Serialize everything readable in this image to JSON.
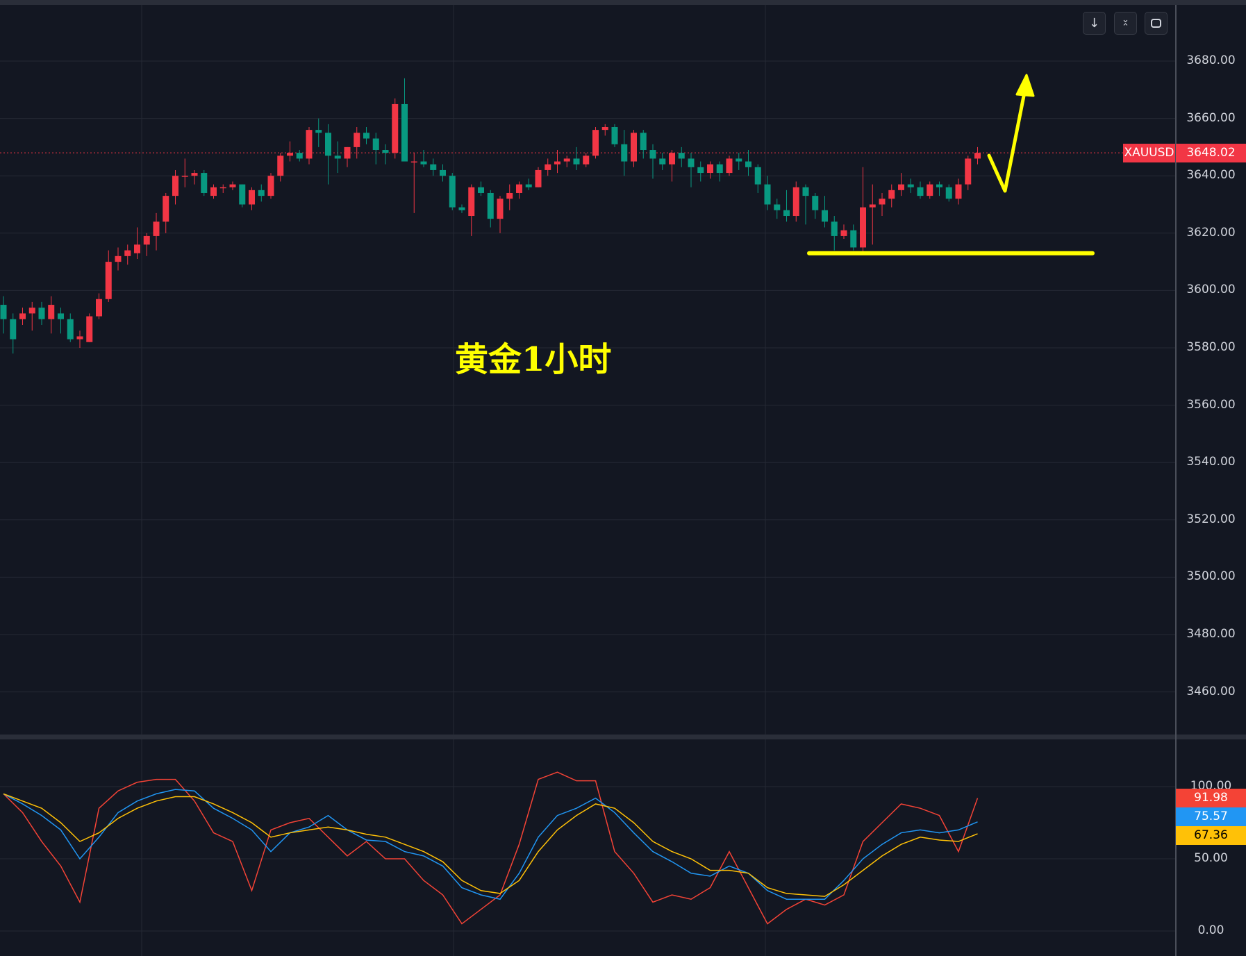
{
  "annotation_text": "黄金1小时",
  "toolbar": {
    "icons": [
      "arrow-down-icon",
      "collapse-icon",
      "fullscreen-icon"
    ]
  },
  "chart_data": [
    {
      "type": "candlestick",
      "symbol": "XAUUSD",
      "last_price": "3648.02",
      "colors": {
        "up": "#f23645",
        "down": "#089981",
        "last_price": "#f23645"
      },
      "ylim": [
        3445,
        3700
      ],
      "y_ticks": [
        "3680.00",
        "3660.00",
        "3640.00",
        "3620.00",
        "3600.00",
        "3580.00",
        "3560.00",
        "3540.00",
        "3520.00",
        "3500.00",
        "3480.00",
        "3460.00"
      ],
      "grid": true,
      "ohlc": [
        [
          3595,
          3598,
          3585,
          3590
        ],
        [
          3590,
          3592,
          3578,
          3583
        ],
        [
          3590,
          3594,
          3588,
          3592
        ],
        [
          3592,
          3596,
          3586,
          3594
        ],
        [
          3594,
          3596,
          3588,
          3590
        ],
        [
          3590,
          3598,
          3585,
          3595
        ],
        [
          3592,
          3594,
          3585,
          3590
        ],
        [
          3590,
          3592,
          3582,
          3583
        ],
        [
          3583,
          3586,
          3580,
          3584
        ],
        [
          3582,
          3592,
          3582,
          3591
        ],
        [
          3591,
          3599,
          3590,
          3597
        ],
        [
          3597,
          3614,
          3596,
          3610
        ],
        [
          3610,
          3615,
          3607,
          3612
        ],
        [
          3612,
          3616,
          3609,
          3614
        ],
        [
          3613,
          3622,
          3611,
          3616
        ],
        [
          3616,
          3620,
          3612,
          3619
        ],
        [
          3619,
          3627,
          3614,
          3624
        ],
        [
          3624,
          3634,
          3620,
          3633
        ],
        [
          3633,
          3642,
          3630,
          3640
        ],
        [
          3640,
          3646,
          3636,
          3640
        ],
        [
          3640,
          3642,
          3637,
          3641
        ],
        [
          3641,
          3642,
          3633,
          3634
        ],
        [
          3633,
          3637,
          3632,
          3636
        ],
        [
          3636,
          3637,
          3634,
          3636
        ],
        [
          3636,
          3638,
          3635,
          3637
        ],
        [
          3637,
          3637,
          3629,
          3630
        ],
        [
          3630,
          3636,
          3628,
          3635
        ],
        [
          3635,
          3637,
          3631,
          3633
        ],
        [
          3633,
          3641,
          3632,
          3640
        ],
        [
          3640,
          3648,
          3638,
          3647
        ],
        [
          3647,
          3652,
          3645,
          3648
        ],
        [
          3648,
          3649,
          3645,
          3646
        ],
        [
          3646,
          3657,
          3644,
          3656
        ],
        [
          3656,
          3660,
          3650,
          3655
        ],
        [
          3655,
          3658,
          3637,
          3647
        ],
        [
          3647,
          3652,
          3641,
          3646
        ],
        [
          3646,
          3650,
          3643,
          3650
        ],
        [
          3650,
          3657,
          3646,
          3655
        ],
        [
          3655,
          3657,
          3651,
          3653
        ],
        [
          3653,
          3655,
          3644,
          3649
        ],
        [
          3649,
          3651,
          3644,
          3648
        ],
        [
          3648,
          3667,
          3646,
          3665
        ],
        [
          3665,
          3674,
          3645,
          3645
        ],
        [
          3645,
          3648,
          3627,
          3645
        ],
        [
          3645,
          3649,
          3643,
          3644
        ],
        [
          3644,
          3646,
          3640,
          3642
        ],
        [
          3642,
          3644,
          3638,
          3640
        ],
        [
          3640,
          3641,
          3628,
          3629
        ],
        [
          3629,
          3630,
          3627,
          3628
        ],
        [
          3626,
          3637,
          3619,
          3636
        ],
        [
          3636,
          3638,
          3633,
          3634
        ],
        [
          3634,
          3635,
          3622,
          3625
        ],
        [
          3625,
          3633,
          3620,
          3632
        ],
        [
          3632,
          3637,
          3628,
          3634
        ],
        [
          3634,
          3638,
          3632,
          3637
        ],
        [
          3637,
          3639,
          3635,
          3636
        ],
        [
          3636,
          3643,
          3636,
          3642
        ],
        [
          3642,
          3646,
          3640,
          3644
        ],
        [
          3644,
          3649,
          3641,
          3645
        ],
        [
          3645,
          3647,
          3643,
          3646
        ],
        [
          3646,
          3650,
          3642,
          3644
        ],
        [
          3644,
          3648,
          3643,
          3647
        ],
        [
          3647,
          3657,
          3646,
          3656
        ],
        [
          3656,
          3658,
          3654,
          3657
        ],
        [
          3657,
          3658,
          3650,
          3651
        ],
        [
          3651,
          3656,
          3640,
          3645
        ],
        [
          3645,
          3656,
          3643,
          3655
        ],
        [
          3655,
          3656,
          3646,
          3649
        ],
        [
          3649,
          3651,
          3639,
          3646
        ],
        [
          3646,
          3648,
          3642,
          3644
        ],
        [
          3644,
          3649,
          3638,
          3648
        ],
        [
          3648,
          3650,
          3643,
          3646
        ],
        [
          3646,
          3648,
          3636,
          3643
        ],
        [
          3643,
          3645,
          3638,
          3641
        ],
        [
          3641,
          3645,
          3639,
          3644
        ],
        [
          3644,
          3645,
          3638,
          3641
        ],
        [
          3641,
          3647,
          3640,
          3646
        ],
        [
          3646,
          3648,
          3642,
          3645
        ],
        [
          3645,
          3649,
          3640,
          3643
        ],
        [
          3643,
          3644,
          3634,
          3637
        ],
        [
          3637,
          3640,
          3628,
          3630
        ],
        [
          3630,
          3632,
          3625,
          3628
        ],
        [
          3628,
          3635,
          3624,
          3626
        ],
        [
          3626,
          3638,
          3624,
          3636
        ],
        [
          3636,
          3637,
          3623,
          3633
        ],
        [
          3633,
          3634,
          3625,
          3628
        ],
        [
          3628,
          3633,
          3622,
          3624
        ],
        [
          3624,
          3626,
          3614,
          3619
        ],
        [
          3619,
          3623,
          3618,
          3621
        ],
        [
          3621,
          3623,
          3614,
          3615
        ],
        [
          3615,
          3643,
          3613,
          3629
        ],
        [
          3629,
          3637,
          3616,
          3630
        ],
        [
          3630,
          3634,
          3626,
          3632
        ],
        [
          3632,
          3637,
          3629,
          3635
        ],
        [
          3635,
          3641,
          3633,
          3637
        ],
        [
          3637,
          3639,
          3634,
          3636
        ],
        [
          3636,
          3638,
          3632,
          3633
        ],
        [
          3633,
          3638,
          3632,
          3637
        ],
        [
          3637,
          3638,
          3633,
          3636
        ],
        [
          3636,
          3637,
          3631,
          3632
        ],
        [
          3632,
          3639,
          3630,
          3637
        ],
        [
          3637,
          3647,
          3635,
          3646
        ],
        [
          3646,
          3650,
          3644,
          3648
        ]
      ],
      "annotations": {
        "support_line_price": 3613,
        "line_color": "#ffff00"
      }
    },
    {
      "type": "line",
      "ylim": [
        -17,
        111
      ],
      "y_ticks": [
        "100.00",
        "50.00",
        "0.00"
      ],
      "grid": true,
      "x_step_candles": 2,
      "series": [
        {
          "color": "#f44336",
          "last": "91.98",
          "values": [
            95,
            82,
            62,
            45,
            20,
            85,
            97,
            103,
            105,
            105,
            90,
            68,
            62,
            28,
            70,
            75,
            78,
            65,
            52,
            62,
            50,
            50,
            35,
            25,
            5,
            15,
            25,
            60,
            105,
            110,
            104,
            104,
            55,
            40,
            20,
            25,
            22,
            30,
            55,
            30,
            5,
            15,
            22,
            18,
            25,
            62,
            75,
            88,
            85,
            80,
            55,
            91.98
          ]
        },
        {
          "color": "#2196f3",
          "last": "75.57",
          "values": [
            95,
            88,
            80,
            70,
            50,
            65,
            82,
            90,
            95,
            98,
            97,
            85,
            78,
            70,
            55,
            68,
            72,
            80,
            70,
            63,
            62,
            55,
            52,
            45,
            30,
            25,
            22,
            40,
            65,
            80,
            85,
            92,
            82,
            68,
            55,
            48,
            40,
            38,
            45,
            40,
            28,
            22,
            22,
            22,
            35,
            50,
            60,
            68,
            70,
            68,
            70,
            75.57
          ]
        },
        {
          "color": "#ffc107",
          "last": "67.36",
          "values": [
            95,
            90,
            85,
            75,
            62,
            68,
            78,
            85,
            90,
            93,
            93,
            88,
            82,
            75,
            65,
            68,
            70,
            72,
            70,
            67,
            65,
            60,
            55,
            48,
            35,
            28,
            26,
            35,
            55,
            70,
            80,
            88,
            85,
            75,
            62,
            55,
            50,
            42,
            42,
            40,
            30,
            26,
            25,
            24,
            32,
            42,
            52,
            60,
            65,
            63,
            62,
            67.36
          ]
        }
      ]
    }
  ]
}
